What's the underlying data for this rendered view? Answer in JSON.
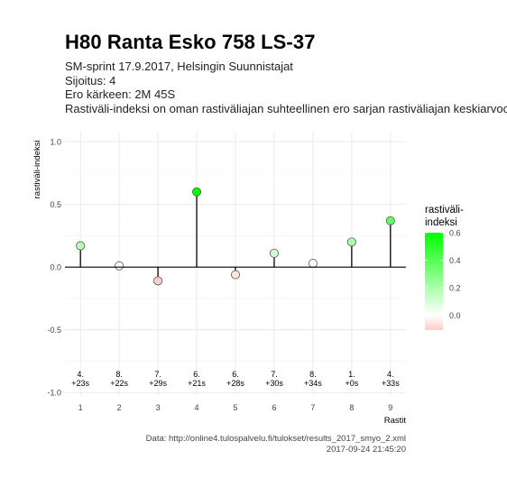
{
  "title": "H80 Ranta Esko 758 LS-37",
  "subtitle_lines": [
    "SM-sprint 17.9.2017, Helsingin Suunnistajat",
    "Sijoitus: 4",
    "Ero kärkeen: 2M 45S",
    "Rastiväli-indeksi on oman rastiväliajan suhteellinen ero sarjan rastiväliajan keskiarvoon"
  ],
  "caption": {
    "source": "Data: http://online4.tulospalvelu.fi/tulokset/results_2017_smyo_2.xml",
    "timestamp": "2017-09-24 21:45:20"
  },
  "colors": {
    "low": "#f8d0c8",
    "mid": "#ffffff",
    "high": "#00ff00",
    "grid": "#e6e6e6",
    "axis_line": "#000000"
  },
  "chart_data": {
    "type": "lollipop",
    "xlabel": "Rastit",
    "ylabel": "rastiväli-indeksi",
    "x": [
      1,
      2,
      3,
      4,
      5,
      6,
      7,
      8,
      9
    ],
    "xlim": [
      0.6,
      9.4
    ],
    "ylim": [
      -1.02,
      1.08
    ],
    "y_ticks": [
      -1.0,
      -0.5,
      0.0,
      0.5,
      1.0
    ],
    "y_tick_labels": [
      "-1.0",
      "-0.5",
      "0.0",
      "0.5",
      "1.0"
    ],
    "values": [
      0.17,
      0.01,
      -0.11,
      0.6,
      -0.06,
      0.11,
      0.03,
      0.2,
      0.37
    ],
    "rank_labels": [
      "4.",
      "8.",
      "7.",
      "6.",
      "6.",
      "7.",
      "8.",
      "1.",
      "4."
    ],
    "time_labels": [
      "+23s",
      "+22s",
      "+29s",
      "+21s",
      "+28s",
      "+30s",
      "+34s",
      "+0s",
      "+33s"
    ],
    "legend": {
      "title_lines": [
        "rastiväli-",
        "indeksi"
      ],
      "ticks": [
        0.6,
        0.4,
        0.2,
        0.0
      ],
      "tick_labels": [
        "0.6",
        "0.4",
        "0.2",
        "0.0"
      ],
      "range": [
        -0.11,
        0.6
      ]
    },
    "grid": true
  }
}
